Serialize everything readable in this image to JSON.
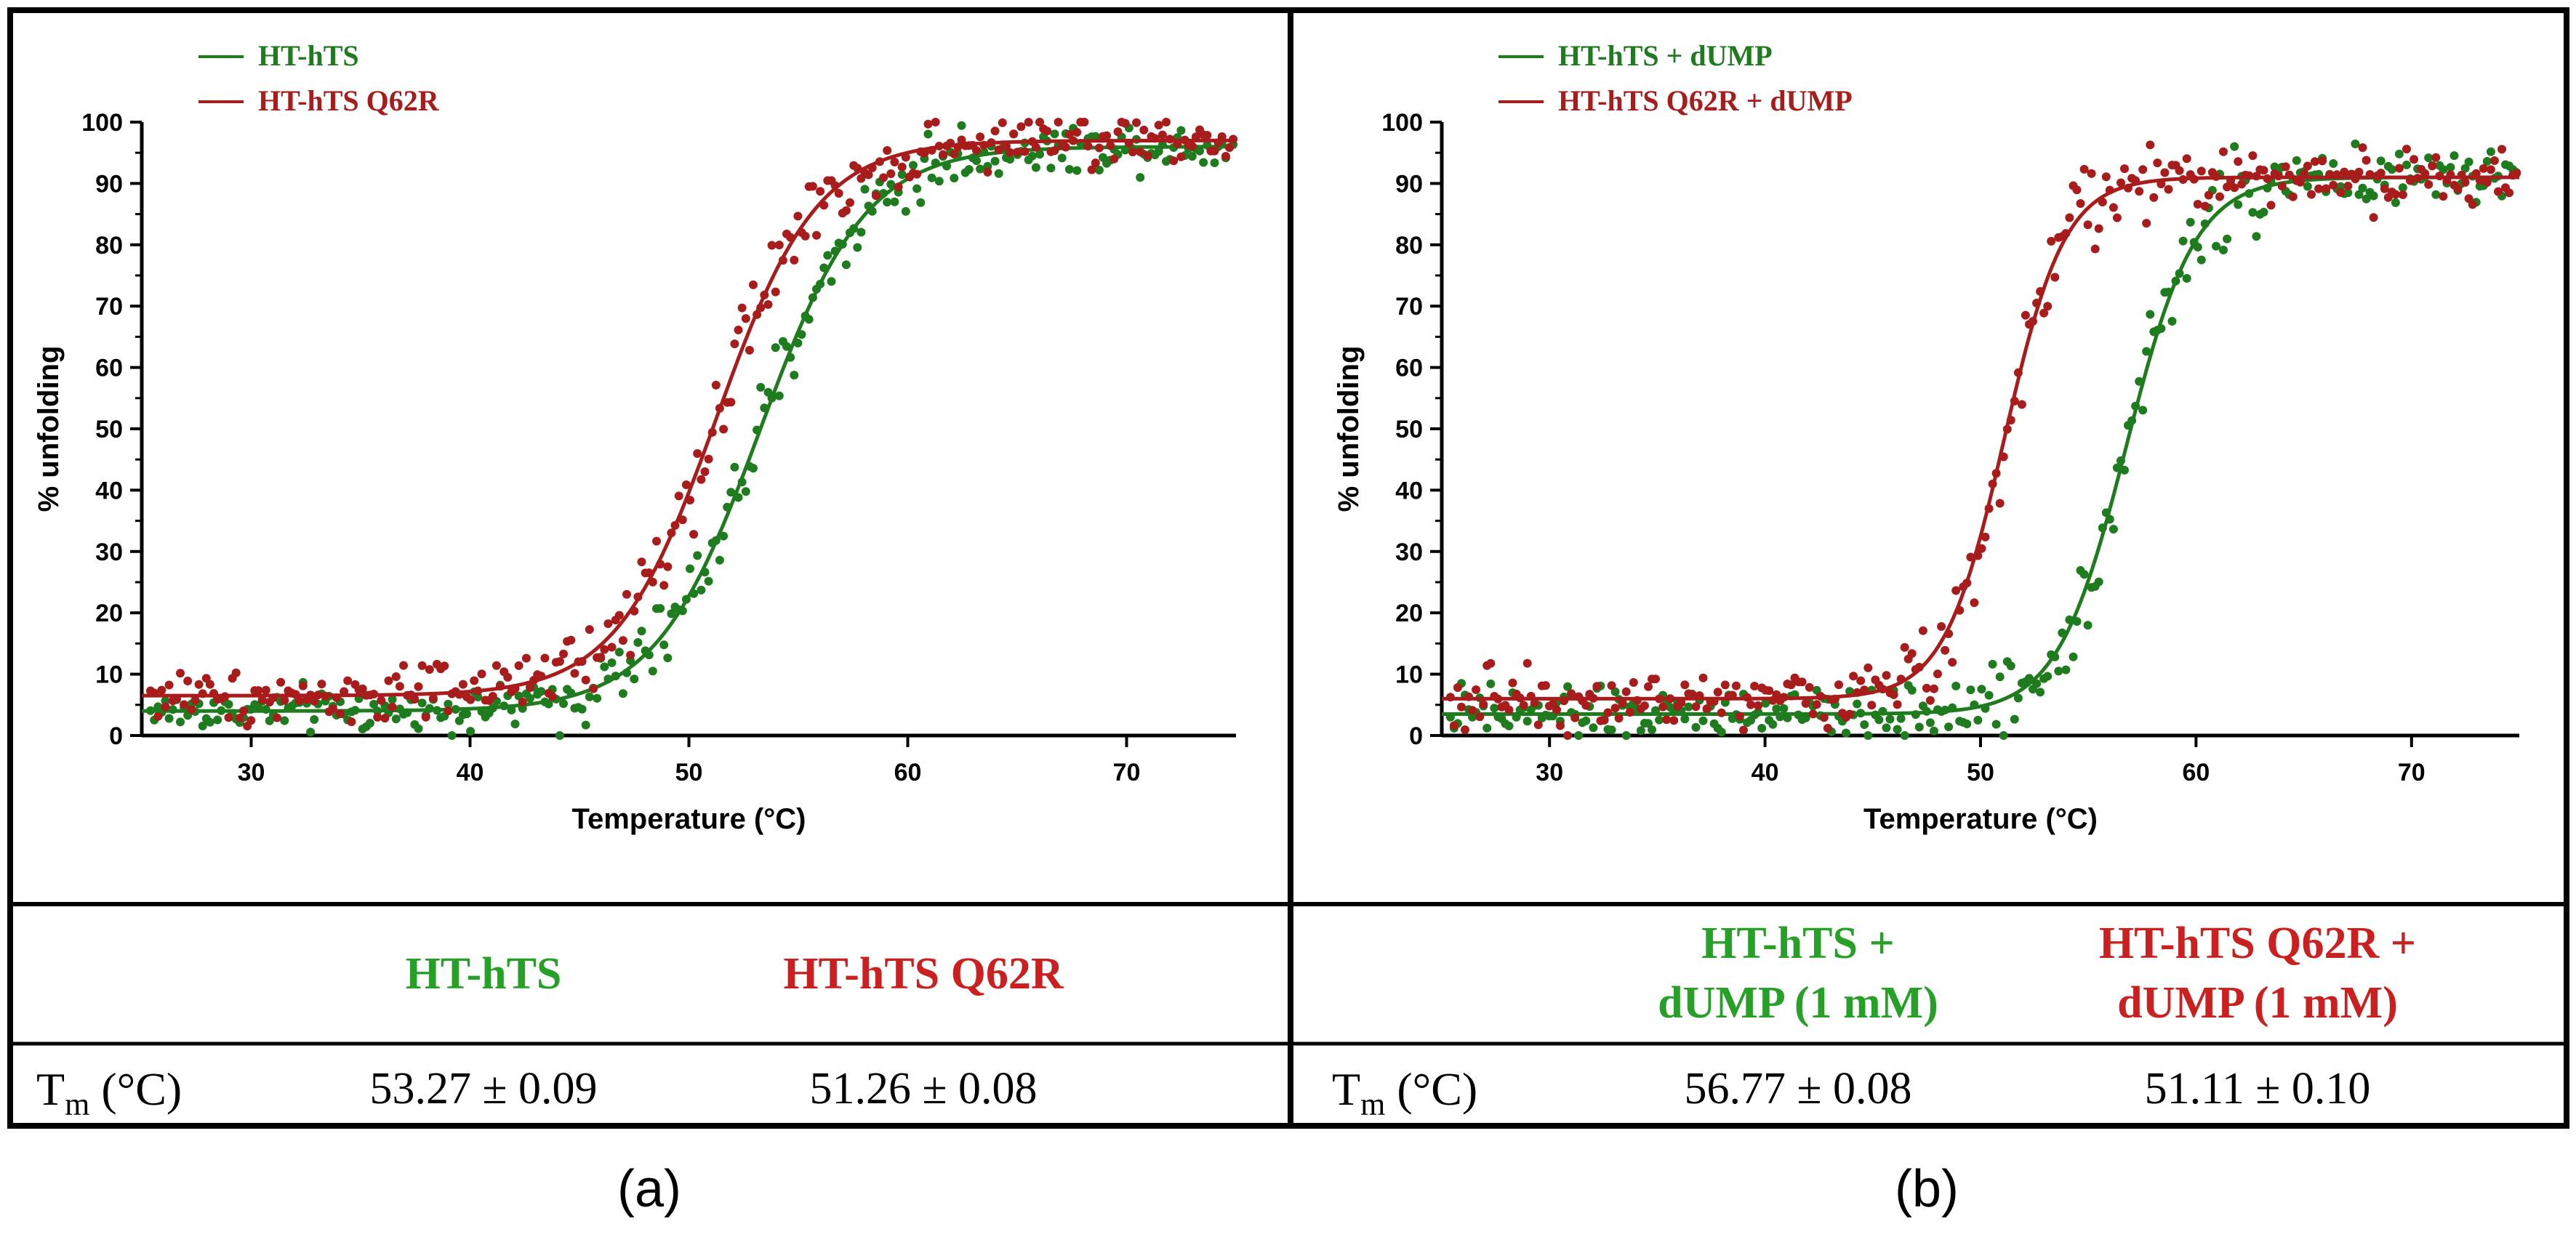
{
  "colors": {
    "green": "#1e7b1e",
    "red": "#a81c1c",
    "green_text": "#26a026",
    "red_text": "#cc2020",
    "frame": "#000000"
  },
  "chart_data": [
    {
      "panel": "a",
      "panel_label": "(a)",
      "type": "scatter",
      "xlabel": "Temperature (°C)",
      "ylabel": "% unfolding",
      "xlim": [
        25,
        75
      ],
      "ylim": [
        0,
        100
      ],
      "x_ticks": [
        30,
        40,
        50,
        60,
        70
      ],
      "y_ticks": [
        0,
        10,
        20,
        30,
        40,
        50,
        60,
        70,
        80,
        90,
        100
      ],
      "legend_position": "top-left",
      "series": [
        {
          "name": "HT-hTS",
          "color_key": "green",
          "bottom": 4,
          "top": 96,
          "tm": 53.27,
          "slope": 2.4,
          "noise": 2.5
        },
        {
          "name": "HT-hTS Q62R",
          "color_key": "red",
          "bottom": 6.5,
          "top": 97,
          "tm": 51.26,
          "slope": 2.3,
          "noise": 3.0
        }
      ],
      "table": {
        "columns": [
          "HT-hTS",
          "HT-hTS Q62R"
        ],
        "row_label": "T",
        "row_label_sub": "m",
        "row_label_unit": " (°C)",
        "values": [
          "53.27 ± 0.09",
          "51.26 ± 0.08"
        ]
      }
    },
    {
      "panel": "b",
      "panel_label": "(b)",
      "type": "scatter",
      "xlabel": "Temperature (°C)",
      "ylabel": "% unfolding",
      "xlim": [
        25,
        75
      ],
      "ylim": [
        0,
        100
      ],
      "x_ticks": [
        30,
        40,
        50,
        60,
        70
      ],
      "y_ticks": [
        0,
        10,
        20,
        30,
        40,
        50,
        60,
        70,
        80,
        90,
        100
      ],
      "legend_position": "top-left",
      "series": [
        {
          "name": "HT-hTS + dUMP",
          "color_key": "green",
          "bottom": 3.5,
          "top": 91,
          "tm": 56.77,
          "slope": 1.6,
          "noise": 3.0
        },
        {
          "name": "HT-hTS Q62R + dUMP",
          "color_key": "red",
          "bottom": 6,
          "top": 91,
          "tm": 51.11,
          "slope": 1.4,
          "noise": 3.5
        }
      ],
      "table": {
        "columns": [
          "HT-hTS + dUMP (1 mM)",
          "HT-hTS Q62R + dUMP (1 mM)"
        ],
        "column_lines": [
          [
            "HT-hTS +",
            "dUMP (1 mM)"
          ],
          [
            "HT-hTS Q62R +",
            "dUMP (1 mM)"
          ]
        ],
        "row_label": "T",
        "row_label_sub": "m",
        "row_label_unit": " (°C)",
        "values": [
          "56.77 ± 0.08",
          "51.11 ± 0.10"
        ]
      }
    }
  ]
}
